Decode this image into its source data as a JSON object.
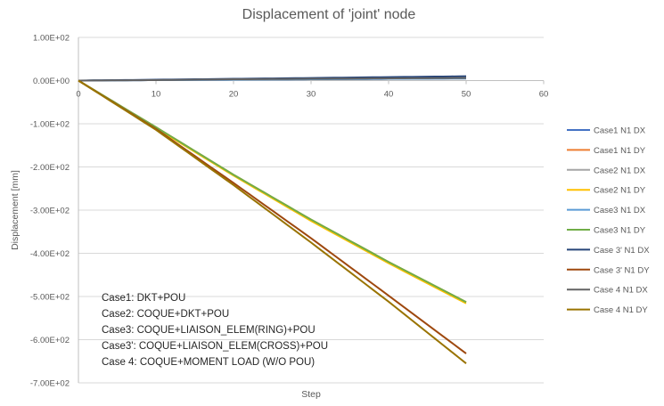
{
  "chart_data": {
    "type": "line",
    "title": "Displacement of 'joint' node",
    "xlabel": "Step",
    "ylabel": "Displacement  [mm]",
    "xlim": [
      0,
      60
    ],
    "ylim": [
      -700,
      100
    ],
    "x_ticks": [
      "0",
      "10",
      "20",
      "30",
      "40",
      "50",
      "60"
    ],
    "y_ticks": [
      "1.00E+02",
      "0.00E+00",
      "-1.00E+02",
      "-2.00E+02",
      "-3.00E+02",
      "-4.00E+02",
      "-5.00E+02",
      "-6.00E+02",
      "-7.00E+02"
    ],
    "grid": true,
    "legend_position": "right",
    "series": [
      {
        "name": "Case1 N1 DX",
        "color": "#4472C4",
        "x": [
          0,
          10,
          20,
          30,
          40,
          50
        ],
        "y": [
          0,
          1,
          2,
          3,
          4,
          5
        ]
      },
      {
        "name": "Case1 N1 DY",
        "color": "#ED7D31",
        "x": [
          0,
          10,
          20,
          30,
          40,
          50
        ],
        "y": [
          0,
          -108,
          -218,
          -322,
          -420,
          -513
        ]
      },
      {
        "name": "Case2 N1 DX",
        "color": "#A5A5A5",
        "x": [
          0,
          10,
          20,
          30,
          40,
          50
        ],
        "y": [
          0,
          1,
          2,
          3,
          4,
          5
        ]
      },
      {
        "name": "Case2 N1 DY",
        "color": "#FFC000",
        "x": [
          0,
          10,
          20,
          30,
          40,
          50
        ],
        "y": [
          0,
          -110,
          -220,
          -325,
          -423,
          -516
        ]
      },
      {
        "name": "Case3 N1 DX",
        "color": "#5B9BD5",
        "x": [
          0,
          10,
          20,
          30,
          40,
          50
        ],
        "y": [
          0,
          1,
          2,
          3,
          4,
          5
        ]
      },
      {
        "name": "Case3 N1 DY",
        "color": "#70AD47",
        "x": [
          0,
          10,
          20,
          30,
          40,
          50
        ],
        "y": [
          0,
          -108,
          -218,
          -322,
          -420,
          -513
        ]
      },
      {
        "name": "Case 3' N1 DX",
        "color": "#264478",
        "x": [
          0,
          10,
          20,
          30,
          40,
          50
        ],
        "y": [
          0,
          2,
          4,
          6,
          8,
          10
        ]
      },
      {
        "name": "Case 3' N1 DY",
        "color": "#9E480E",
        "x": [
          0,
          10,
          20,
          30,
          40,
          50
        ],
        "y": [
          0,
          -112,
          -237,
          -365,
          -498,
          -632
        ]
      },
      {
        "name": "Case 4 N1 DX",
        "color": "#636363",
        "x": [
          0,
          10,
          20,
          30,
          40,
          50
        ],
        "y": [
          0,
          1,
          3,
          4,
          5,
          6
        ]
      },
      {
        "name": "Case 4 N1 DY",
        "color": "#997300",
        "x": [
          0,
          10,
          20,
          30,
          40,
          50
        ],
        "y": [
          0,
          -114,
          -242,
          -375,
          -512,
          -655
        ]
      }
    ],
    "annotations": [
      "Case1: DKT+POU",
      "Case2: COQUE+DKT+POU",
      "Case3: COQUE+LIAISON_ELEM(RING)+POU",
      "Case3': COQUE+LIAISON_ELEM(CROSS)+POU",
      "Case 4: COQUE+MOMENT LOAD (W/O POU)"
    ]
  }
}
